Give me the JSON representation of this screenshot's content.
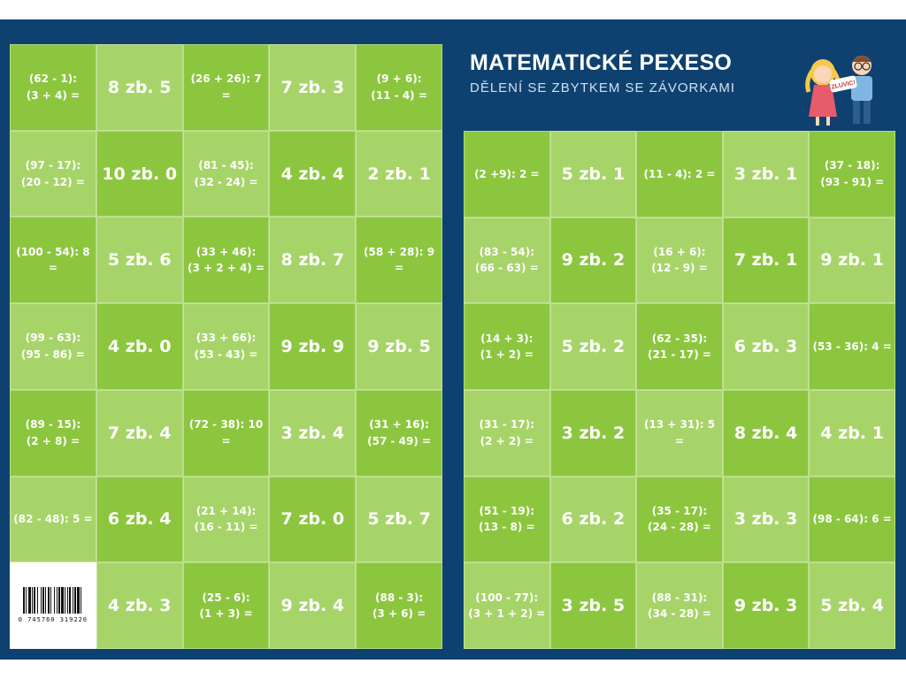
{
  "title": "MATEMATICKÉ PEXESO",
  "subtitle": "DĚLENÍ SE ZBYTKEM SE ZÁVORKAMI",
  "illustration": "two-children-with-sign",
  "illustration_sign_text": "ZLUVIC!",
  "barcode": "0 745760 319220",
  "colors": {
    "background": "#0f4170",
    "card_dark": "#8cc63f",
    "card_light": "#a7d469",
    "text": "#ffffff"
  },
  "left_grid": [
    [
      "(62 - 1):\n(3 + 4) =",
      "8 zb. 5",
      "(26 + 26): 7 =",
      "7 zb. 3",
      "(9 + 6):\n(11 - 4) ="
    ],
    [
      "(97 - 17):\n(20 - 12) =",
      "10 zb. 0",
      "(81 - 45):\n(32 - 24) =",
      "4 zb. 4",
      "2 zb. 1"
    ],
    [
      "(100 - 54): 8 =",
      "5 zb. 6",
      "(33 + 46):\n(3 + 2 + 4) =",
      "8 zb. 7",
      "(58 + 28): 9 ="
    ],
    [
      "(99 - 63):\n(95 - 86) =",
      "4 zb. 0",
      "(33 + 66):\n(53 - 43) =",
      "9 zb. 9",
      "9 zb. 5"
    ],
    [
      "(89 - 15):\n(2 + 8) =",
      "7 zb. 4",
      "(72 - 38): 10 =",
      "3 zb. 4",
      "(31 + 16):\n(57 - 49) ="
    ],
    [
      "(82 - 48): 5 =",
      "6 zb. 4",
      "(21 + 14):\n(16 - 11) =",
      "7 zb. 0",
      "5 zb. 7"
    ],
    [
      "",
      "4 zb. 3",
      "(25 - 6):\n(1 + 3) =",
      "9 zb. 4",
      "(88 - 3):\n(3 + 6) ="
    ]
  ],
  "right_grid": [
    [
      "(2 +9): 2 =",
      "5 zb. 1",
      "(11 - 4): 2 =",
      "3 zb. 1",
      "(37 - 18):\n(93 - 91) ="
    ],
    [
      "(83 - 54):\n(66 - 63) =",
      "9 zb. 2",
      "(16 + 6):\n(12 - 9) =",
      "7 zb. 1",
      "9 zb. 1"
    ],
    [
      "(14 + 3):\n(1 + 2) =",
      "5 zb. 2",
      "(62 - 35):\n(21 - 17) =",
      "6 zb. 3",
      "(53 - 36): 4 ="
    ],
    [
      "(31 - 17):\n(2 + 2) =",
      "3 zb. 2",
      "(13 + 31): 5 =",
      "8 zb. 4",
      "4 zb. 1"
    ],
    [
      "(51 - 19):\n(13 - 8) =",
      "6 zb. 2",
      "(35 - 17):\n(24 - 28) =",
      "3 zb. 3",
      "(98 - 64): 6 ="
    ],
    [
      "(100 - 77):\n(3 + 1 + 2) =",
      "3 zb. 5",
      "(88 - 31):\n(34 - 28) =",
      "9 zb. 3",
      "5 zb. 4"
    ]
  ]
}
